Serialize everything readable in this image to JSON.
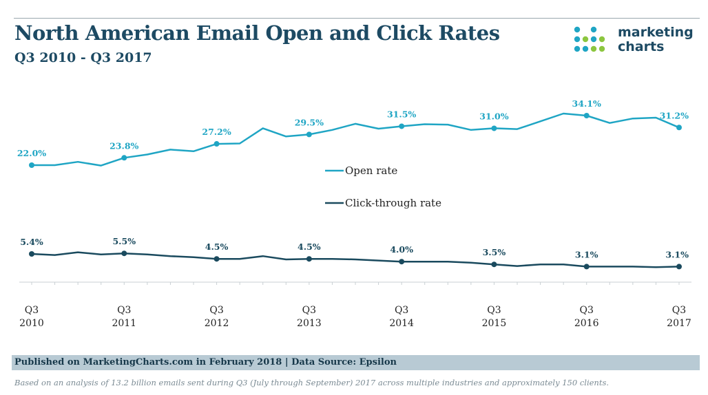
{
  "header": {
    "title": "North American Email Open and Click Rates",
    "subtitle": "Q3 2010 - Q3 2017"
  },
  "logo": {
    "line1": "marketing",
    "line2": "charts"
  },
  "colors": {
    "open": "#1fa5c4",
    "click": "#1a4a5e",
    "title": "#1d4a63",
    "logo_dot": "#8cc63f"
  },
  "chart_data": {
    "type": "line",
    "x": [
      "Q3 2010",
      "Q4 2010",
      "Q1 2011",
      "Q2 2011",
      "Q3 2011",
      "Q4 2011",
      "Q1 2012",
      "Q2 2012",
      "Q3 2012",
      "Q4 2012",
      "Q1 2013",
      "Q2 2013",
      "Q3 2013",
      "Q4 2013",
      "Q1 2014",
      "Q2 2014",
      "Q3 2014",
      "Q4 2014",
      "Q1 2015",
      "Q2 2015",
      "Q3 2015",
      "Q4 2015",
      "Q1 2016",
      "Q2 2016",
      "Q3 2016",
      "Q4 2016",
      "Q1 2017",
      "Q2 2017",
      "Q3 2017"
    ],
    "tick_labels": [
      {
        "index": 0,
        "line1": "Q3",
        "line2": "2010"
      },
      {
        "index": 4,
        "line1": "Q3",
        "line2": "2011"
      },
      {
        "index": 8,
        "line1": "Q3",
        "line2": "2012"
      },
      {
        "index": 12,
        "line1": "Q3",
        "line2": "2013"
      },
      {
        "index": 16,
        "line1": "Q3",
        "line2": "2014"
      },
      {
        "index": 20,
        "line1": "Q3",
        "line2": "2015"
      },
      {
        "index": 24,
        "line1": "Q3",
        "line2": "2016"
      },
      {
        "index": 28,
        "line1": "Q3",
        "line2": "2017"
      }
    ],
    "series": [
      {
        "name": "Open rate",
        "values": [
          22.0,
          22.0,
          22.8,
          21.9,
          23.8,
          24.6,
          25.8,
          25.4,
          27.2,
          27.3,
          31.0,
          29.0,
          29.5,
          30.6,
          32.1,
          30.9,
          31.5,
          32.0,
          31.9,
          30.6,
          31.0,
          30.8,
          32.7,
          34.6,
          34.1,
          32.3,
          33.4,
          33.6,
          31.2
        ],
        "labels": [
          {
            "index": 0,
            "text": "22.0%"
          },
          {
            "index": 4,
            "text": "23.8%"
          },
          {
            "index": 8,
            "text": "27.2%"
          },
          {
            "index": 12,
            "text": "29.5%"
          },
          {
            "index": 16,
            "text": "31.5%"
          },
          {
            "index": 20,
            "text": "31.0%"
          },
          {
            "index": 24,
            "text": "34.1%"
          },
          {
            "index": 28,
            "text": "31.2%"
          }
        ]
      },
      {
        "name": "Click-through rate",
        "values": [
          5.4,
          5.2,
          5.7,
          5.3,
          5.5,
          5.3,
          5.0,
          4.8,
          4.5,
          4.5,
          5.0,
          4.4,
          4.5,
          4.5,
          4.4,
          4.2,
          4.0,
          4.0,
          4.0,
          3.8,
          3.5,
          3.2,
          3.5,
          3.5,
          3.1,
          3.1,
          3.1,
          3.0,
          3.1
        ],
        "labels": [
          {
            "index": 0,
            "text": "5.4%"
          },
          {
            "index": 4,
            "text": "5.5%"
          },
          {
            "index": 8,
            "text": "4.5%"
          },
          {
            "index": 12,
            "text": "4.5%"
          },
          {
            "index": 16,
            "text": "4.0%"
          },
          {
            "index": 20,
            "text": "3.5%"
          },
          {
            "index": 24,
            "text": "3.1%"
          },
          {
            "index": 28,
            "text": "3.1%"
          }
        ]
      }
    ],
    "legend": [
      {
        "text": "Open rate",
        "color": "#1fa5c4"
      },
      {
        "text": "Click-through rate",
        "color": "#1a4a5e"
      }
    ],
    "legend_placement": "center"
  },
  "footer": {
    "published": "Published on MarketingCharts.com in February 2018 | Data Source: Epsilon",
    "note": "Based on an analysis of 13.2 billion emails sent during Q3 (July through September) 2017 across multiple industries and approximately 150 clients."
  }
}
